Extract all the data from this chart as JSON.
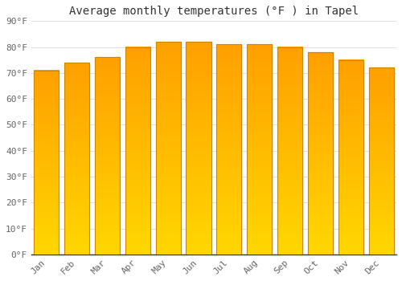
{
  "months": [
    "Jan",
    "Feb",
    "Mar",
    "Apr",
    "May",
    "Jun",
    "Jul",
    "Aug",
    "Sep",
    "Oct",
    "Nov",
    "Dec"
  ],
  "values": [
    71,
    74,
    76,
    80,
    82,
    82,
    81,
    81,
    80,
    78,
    75,
    72
  ],
  "bar_color_top": "#FFD700",
  "bar_color_bottom": "#FFA000",
  "bar_edge_color": "#CC8800",
  "title": "Average monthly temperatures (°F ) in Tapel",
  "ylim": [
    0,
    90
  ],
  "yticks": [
    0,
    10,
    20,
    30,
    40,
    50,
    60,
    70,
    80,
    90
  ],
  "ytick_labels": [
    "0°F",
    "10°F",
    "20°F",
    "30°F",
    "40°F",
    "50°F",
    "60°F",
    "70°F",
    "80°F",
    "90°F"
  ],
  "background_color": "#ffffff",
  "grid_color": "#dddddd",
  "title_fontsize": 10,
  "tick_fontsize": 8,
  "bar_width": 0.82
}
